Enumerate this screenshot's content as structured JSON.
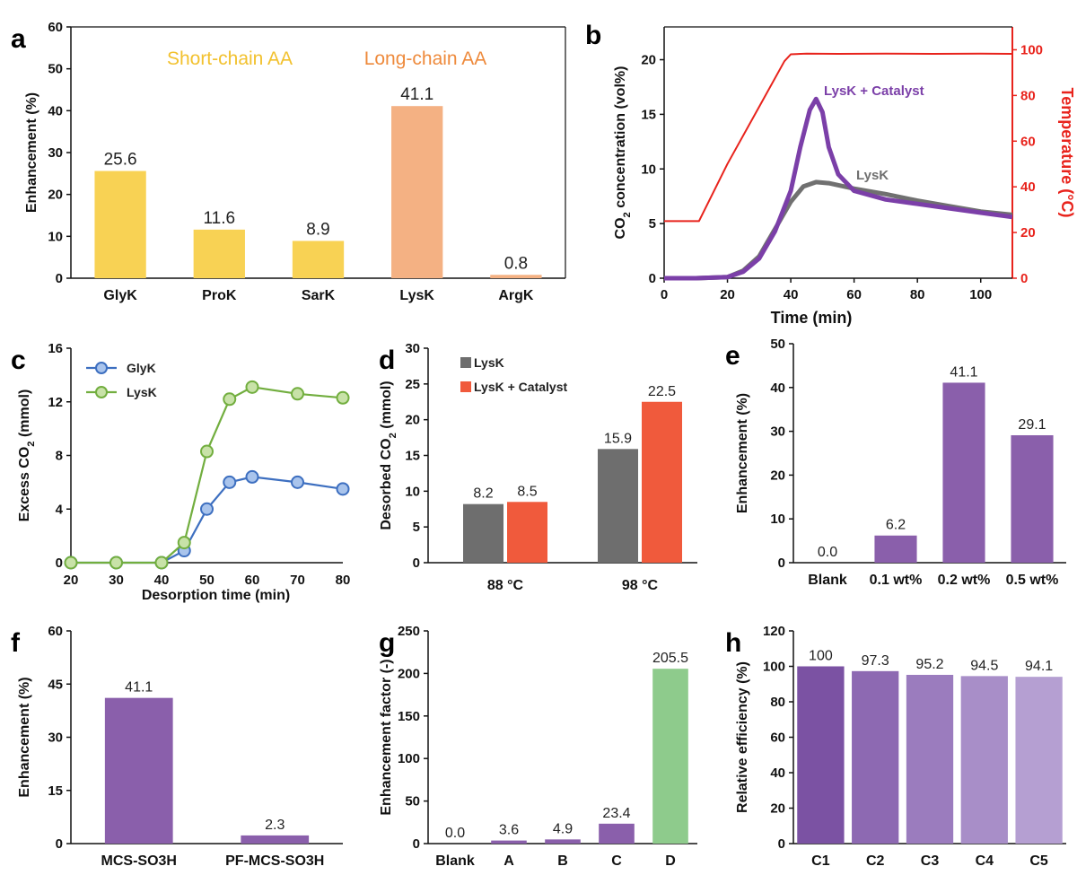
{
  "chart_data": [
    {
      "panel": "a",
      "type": "bar",
      "ylabel": "Enhancement (%)",
      "ylim": [
        0,
        60
      ],
      "yticks": [
        0,
        10,
        20,
        30,
        40,
        50,
        60
      ],
      "categories": [
        "GlyK",
        "ProK",
        "SarK",
        "LysK",
        "ArgK"
      ],
      "values": [
        25.6,
        11.6,
        8.9,
        41.1,
        0.8
      ],
      "value_labels": [
        "25.6",
        "11.6",
        "8.9",
        "41.1",
        "0.8"
      ],
      "colors": [
        "#f8d254",
        "#f8d254",
        "#f8d254",
        "#f4b183",
        "#f4b183"
      ],
      "label_colors": [
        "#e8b820",
        "#e8b820",
        "#e8b820",
        "#e8883a",
        "#e8883a"
      ],
      "annotations": [
        {
          "text": "Short-chain AA",
          "color": "#f2c12e"
        },
        {
          "text": "Long-chain AA",
          "color": "#ee8a3c"
        }
      ],
      "border": true
    },
    {
      "panel": "b",
      "type": "line",
      "xlabel": "Time (min)",
      "xlim": [
        0,
        110
      ],
      "xticks": [
        0,
        20,
        40,
        60,
        80,
        100
      ],
      "ylabel_left": "CO2 concentration (vol%)",
      "ylim_left": [
        0,
        23
      ],
      "yticks_left": [
        0,
        5,
        10,
        15,
        20
      ],
      "ylabel_right": "Temperature (°C)",
      "ylim_right": [
        0,
        110
      ],
      "yticks_right": [
        0,
        20,
        40,
        60,
        80,
        100
      ],
      "series": [
        {
          "name": "Temperature",
          "axis": "right",
          "color": "#e8231c",
          "points": [
            [
              0,
              25
            ],
            [
              11,
              25
            ],
            [
              20,
              50
            ],
            [
              30,
              75
            ],
            [
              38,
              95
            ],
            [
              40,
              98
            ],
            [
              45,
              98.3
            ],
            [
              55,
              98.2
            ],
            [
              70,
              98.3
            ],
            [
              85,
              98.2
            ],
            [
              100,
              98.3
            ],
            [
              110,
              98.2
            ]
          ]
        },
        {
          "name": "LysK",
          "axis": "left",
          "color": "#707070",
          "points": [
            [
              0,
              0
            ],
            [
              10,
              0
            ],
            [
              20,
              0.1
            ],
            [
              25,
              0.7
            ],
            [
              30,
              2
            ],
            [
              35,
              4.5
            ],
            [
              40,
              7
            ],
            [
              44,
              8.4
            ],
            [
              48,
              8.8
            ],
            [
              52,
              8.7
            ],
            [
              60,
              8.2
            ],
            [
              70,
              7.7
            ],
            [
              80,
              7.1
            ],
            [
              90,
              6.6
            ],
            [
              100,
              6.1
            ],
            [
              110,
              5.8
            ]
          ]
        },
        {
          "name": "LysK + Catalyst",
          "axis": "left",
          "color": "#7b3fa8",
          "points": [
            [
              0,
              0
            ],
            [
              10,
              0
            ],
            [
              20,
              0.1
            ],
            [
              25,
              0.6
            ],
            [
              30,
              1.8
            ],
            [
              35,
              4.3
            ],
            [
              40,
              8
            ],
            [
              43,
              12
            ],
            [
              46,
              15.4
            ],
            [
              48,
              16.4
            ],
            [
              50,
              15.2
            ],
            [
              52,
              12
            ],
            [
              55,
              9.5
            ],
            [
              60,
              8
            ],
            [
              70,
              7.2
            ],
            [
              80,
              6.8
            ],
            [
              90,
              6.4
            ],
            [
              100,
              6
            ],
            [
              110,
              5.6
            ]
          ]
        }
      ],
      "annotations": [
        {
          "text": "LysK + Catalyst",
          "color": "#7b3fa8"
        },
        {
          "text": "LysK",
          "color": "#707070"
        }
      ]
    },
    {
      "panel": "c",
      "type": "line",
      "xlabel": "Desorption time (min)",
      "xlim": [
        20,
        80
      ],
      "xticks": [
        20,
        30,
        40,
        50,
        60,
        70,
        80
      ],
      "ylabel": "Excess CO2 (mmol)",
      "ylim": [
        0,
        16
      ],
      "yticks": [
        0,
        4,
        8,
        12,
        16
      ],
      "series": [
        {
          "name": "GlyK",
          "color": "#3d6fc0",
          "x": [
            20,
            30,
            40,
            45,
            50,
            55,
            60,
            70,
            80
          ],
          "y": [
            0,
            0,
            0,
            0.9,
            4.0,
            6.0,
            6.4,
            6.0,
            5.5
          ]
        },
        {
          "name": "LysK",
          "color": "#72ae3f",
          "x": [
            20,
            30,
            40,
            45,
            50,
            55,
            60,
            70,
            80
          ],
          "y": [
            0,
            0,
            0,
            1.5,
            8.3,
            12.2,
            13.1,
            12.6,
            12.3
          ]
        }
      ],
      "legend": "top-left"
    },
    {
      "panel": "d",
      "type": "bar",
      "ylabel": "Desorbed CO2 (mmol)",
      "ylim": [
        0,
        30
      ],
      "yticks": [
        0,
        5,
        10,
        15,
        20,
        25,
        30
      ],
      "categories": [
        "88 °C",
        "98 °C"
      ],
      "series": [
        {
          "name": "LysK",
          "color": "#6e6e6e",
          "values": [
            8.2,
            15.9
          ],
          "value_labels": [
            "8.2",
            "15.9"
          ]
        },
        {
          "name": "LysK + Catalyst",
          "color": "#f05a3c",
          "values": [
            8.5,
            22.5
          ],
          "value_labels": [
            "8.5",
            "22.5"
          ]
        }
      ],
      "legend": "top-left"
    },
    {
      "panel": "e",
      "type": "bar",
      "ylabel": "Enhancement (%)",
      "ylim": [
        0,
        50
      ],
      "yticks": [
        0,
        10,
        20,
        30,
        40,
        50
      ],
      "categories": [
        "Blank",
        "0.1 wt%",
        "0.2 wt%",
        "0.5 wt%"
      ],
      "values": [
        0.0,
        6.2,
        41.1,
        29.1
      ],
      "value_labels": [
        "0.0",
        "6.2",
        "41.1",
        "29.1"
      ],
      "colors": [
        "#8a5fab",
        "#8a5fab",
        "#8a5fab",
        "#8a5fab"
      ]
    },
    {
      "panel": "f",
      "type": "bar",
      "ylabel": "Enhancement (%)",
      "ylim": [
        0,
        60
      ],
      "yticks": [
        0,
        15,
        30,
        45,
        60
      ],
      "categories": [
        "MCS-SO3H",
        "PF-MCS-SO3H"
      ],
      "values": [
        41.1,
        2.3
      ],
      "value_labels": [
        "41.1",
        "2.3"
      ],
      "colors": [
        "#8a5fab",
        "#8a5fab"
      ]
    },
    {
      "panel": "g",
      "type": "bar",
      "ylabel": "Enhancement factor (-)",
      "ylim": [
        0,
        250
      ],
      "yticks": [
        0,
        50,
        100,
        150,
        200,
        250
      ],
      "categories": [
        "Blank",
        "A",
        "B",
        "C",
        "D"
      ],
      "values": [
        0.0,
        3.6,
        4.9,
        23.4,
        205.5
      ],
      "value_labels": [
        "0.0",
        "3.6",
        "4.9",
        "23.4",
        "205.5"
      ],
      "colors": [
        "#8a5fab",
        "#8a5fab",
        "#8a5fab",
        "#8a5fab",
        "#8ecb8c"
      ]
    },
    {
      "panel": "h",
      "type": "bar",
      "ylabel": "Relative efficiency (%)",
      "ylim": [
        0,
        120
      ],
      "yticks": [
        0,
        20,
        40,
        60,
        80,
        100,
        120
      ],
      "categories": [
        "C1",
        "C2",
        "C3",
        "C4",
        "C5"
      ],
      "values": [
        100,
        97.3,
        95.2,
        94.5,
        94.1
      ],
      "value_labels": [
        "100",
        "97.3",
        "95.2",
        "94.5",
        "94.1"
      ],
      "colors": [
        "#7b52a3",
        "#8d69b2",
        "#9b7cbe",
        "#a88ec8",
        "#b59fd2"
      ]
    }
  ]
}
